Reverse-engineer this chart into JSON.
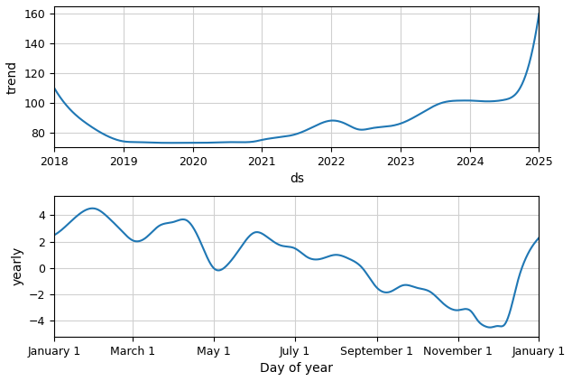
{
  "trend_x": [
    2018.0,
    2018.2,
    2018.5,
    2018.75,
    2019.0,
    2019.2,
    2019.4,
    2019.6,
    2019.8,
    2020.0,
    2020.3,
    2020.6,
    2020.9,
    2021.0,
    2021.2,
    2021.5,
    2021.75,
    2022.0,
    2022.2,
    2022.4,
    2022.6,
    2022.8,
    2023.0,
    2023.3,
    2023.6,
    2023.9,
    2024.0,
    2024.2,
    2024.5,
    2024.7,
    2024.85,
    2025.0
  ],
  "trend_y": [
    110,
    97,
    85,
    78,
    74,
    73.5,
    73.2,
    73.0,
    73.0,
    73.0,
    73.2,
    73.5,
    74.0,
    75.0,
    76.5,
    79.0,
    84.0,
    88.0,
    86.0,
    82.0,
    83.0,
    84.0,
    86.0,
    93.0,
    100.0,
    101.5,
    101.5,
    101.0,
    102.0,
    108.0,
    125.0,
    160.0
  ],
  "trend_xlabel": "ds",
  "trend_ylabel": "trend",
  "trend_xlim": [
    2018,
    2025
  ],
  "trend_ylim": [
    70,
    165
  ],
  "trend_yticks": [
    80,
    100,
    120,
    140,
    160
  ],
  "trend_xticks": [
    2018,
    2019,
    2020,
    2021,
    2022,
    2023,
    2024,
    2025
  ],
  "yearly_x_days": [
    1,
    10,
    20,
    32,
    42,
    52,
    60,
    70,
    80,
    91,
    101,
    111,
    121,
    131,
    141,
    152,
    162,
    172,
    182,
    192,
    202,
    213,
    223,
    233,
    244,
    254,
    264,
    274,
    284,
    294,
    305,
    315,
    320,
    325,
    330,
    335,
    340,
    345,
    350,
    355,
    360,
    366
  ],
  "yearly_y": [
    2.5,
    3.2,
    4.1,
    4.5,
    3.8,
    2.8,
    2.1,
    2.3,
    3.2,
    3.5,
    3.6,
    2.0,
    0.0,
    0.2,
    1.5,
    2.7,
    2.3,
    1.7,
    1.5,
    0.8,
    0.7,
    1.0,
    0.7,
    0.0,
    -1.5,
    -1.8,
    -1.3,
    -1.5,
    -1.8,
    -2.7,
    -3.2,
    -3.3,
    -4.0,
    -4.4,
    -4.5,
    -4.4,
    -4.3,
    -3.0,
    -1.0,
    0.5,
    1.5,
    2.3
  ],
  "yearly_xlabel": "Day of year",
  "yearly_ylabel": "yearly",
  "yearly_xlim_days": [
    1,
    366
  ],
  "yearly_ylim": [
    -5.2,
    5.5
  ],
  "yearly_yticks": [
    -4,
    -2,
    0,
    2,
    4
  ],
  "tick_days": [
    1,
    60,
    121,
    182,
    244,
    305,
    366
  ],
  "tick_labels": [
    "January 1",
    "March 1",
    "May 1",
    "July 1",
    "September 1",
    "November 1",
    "January 1"
  ],
  "line_color": "#1f77b4",
  "line_width": 1.5,
  "grid_color": "#d0d0d0",
  "grid_linestyle": "-",
  "grid_linewidth": 0.8,
  "bg_color": "white"
}
